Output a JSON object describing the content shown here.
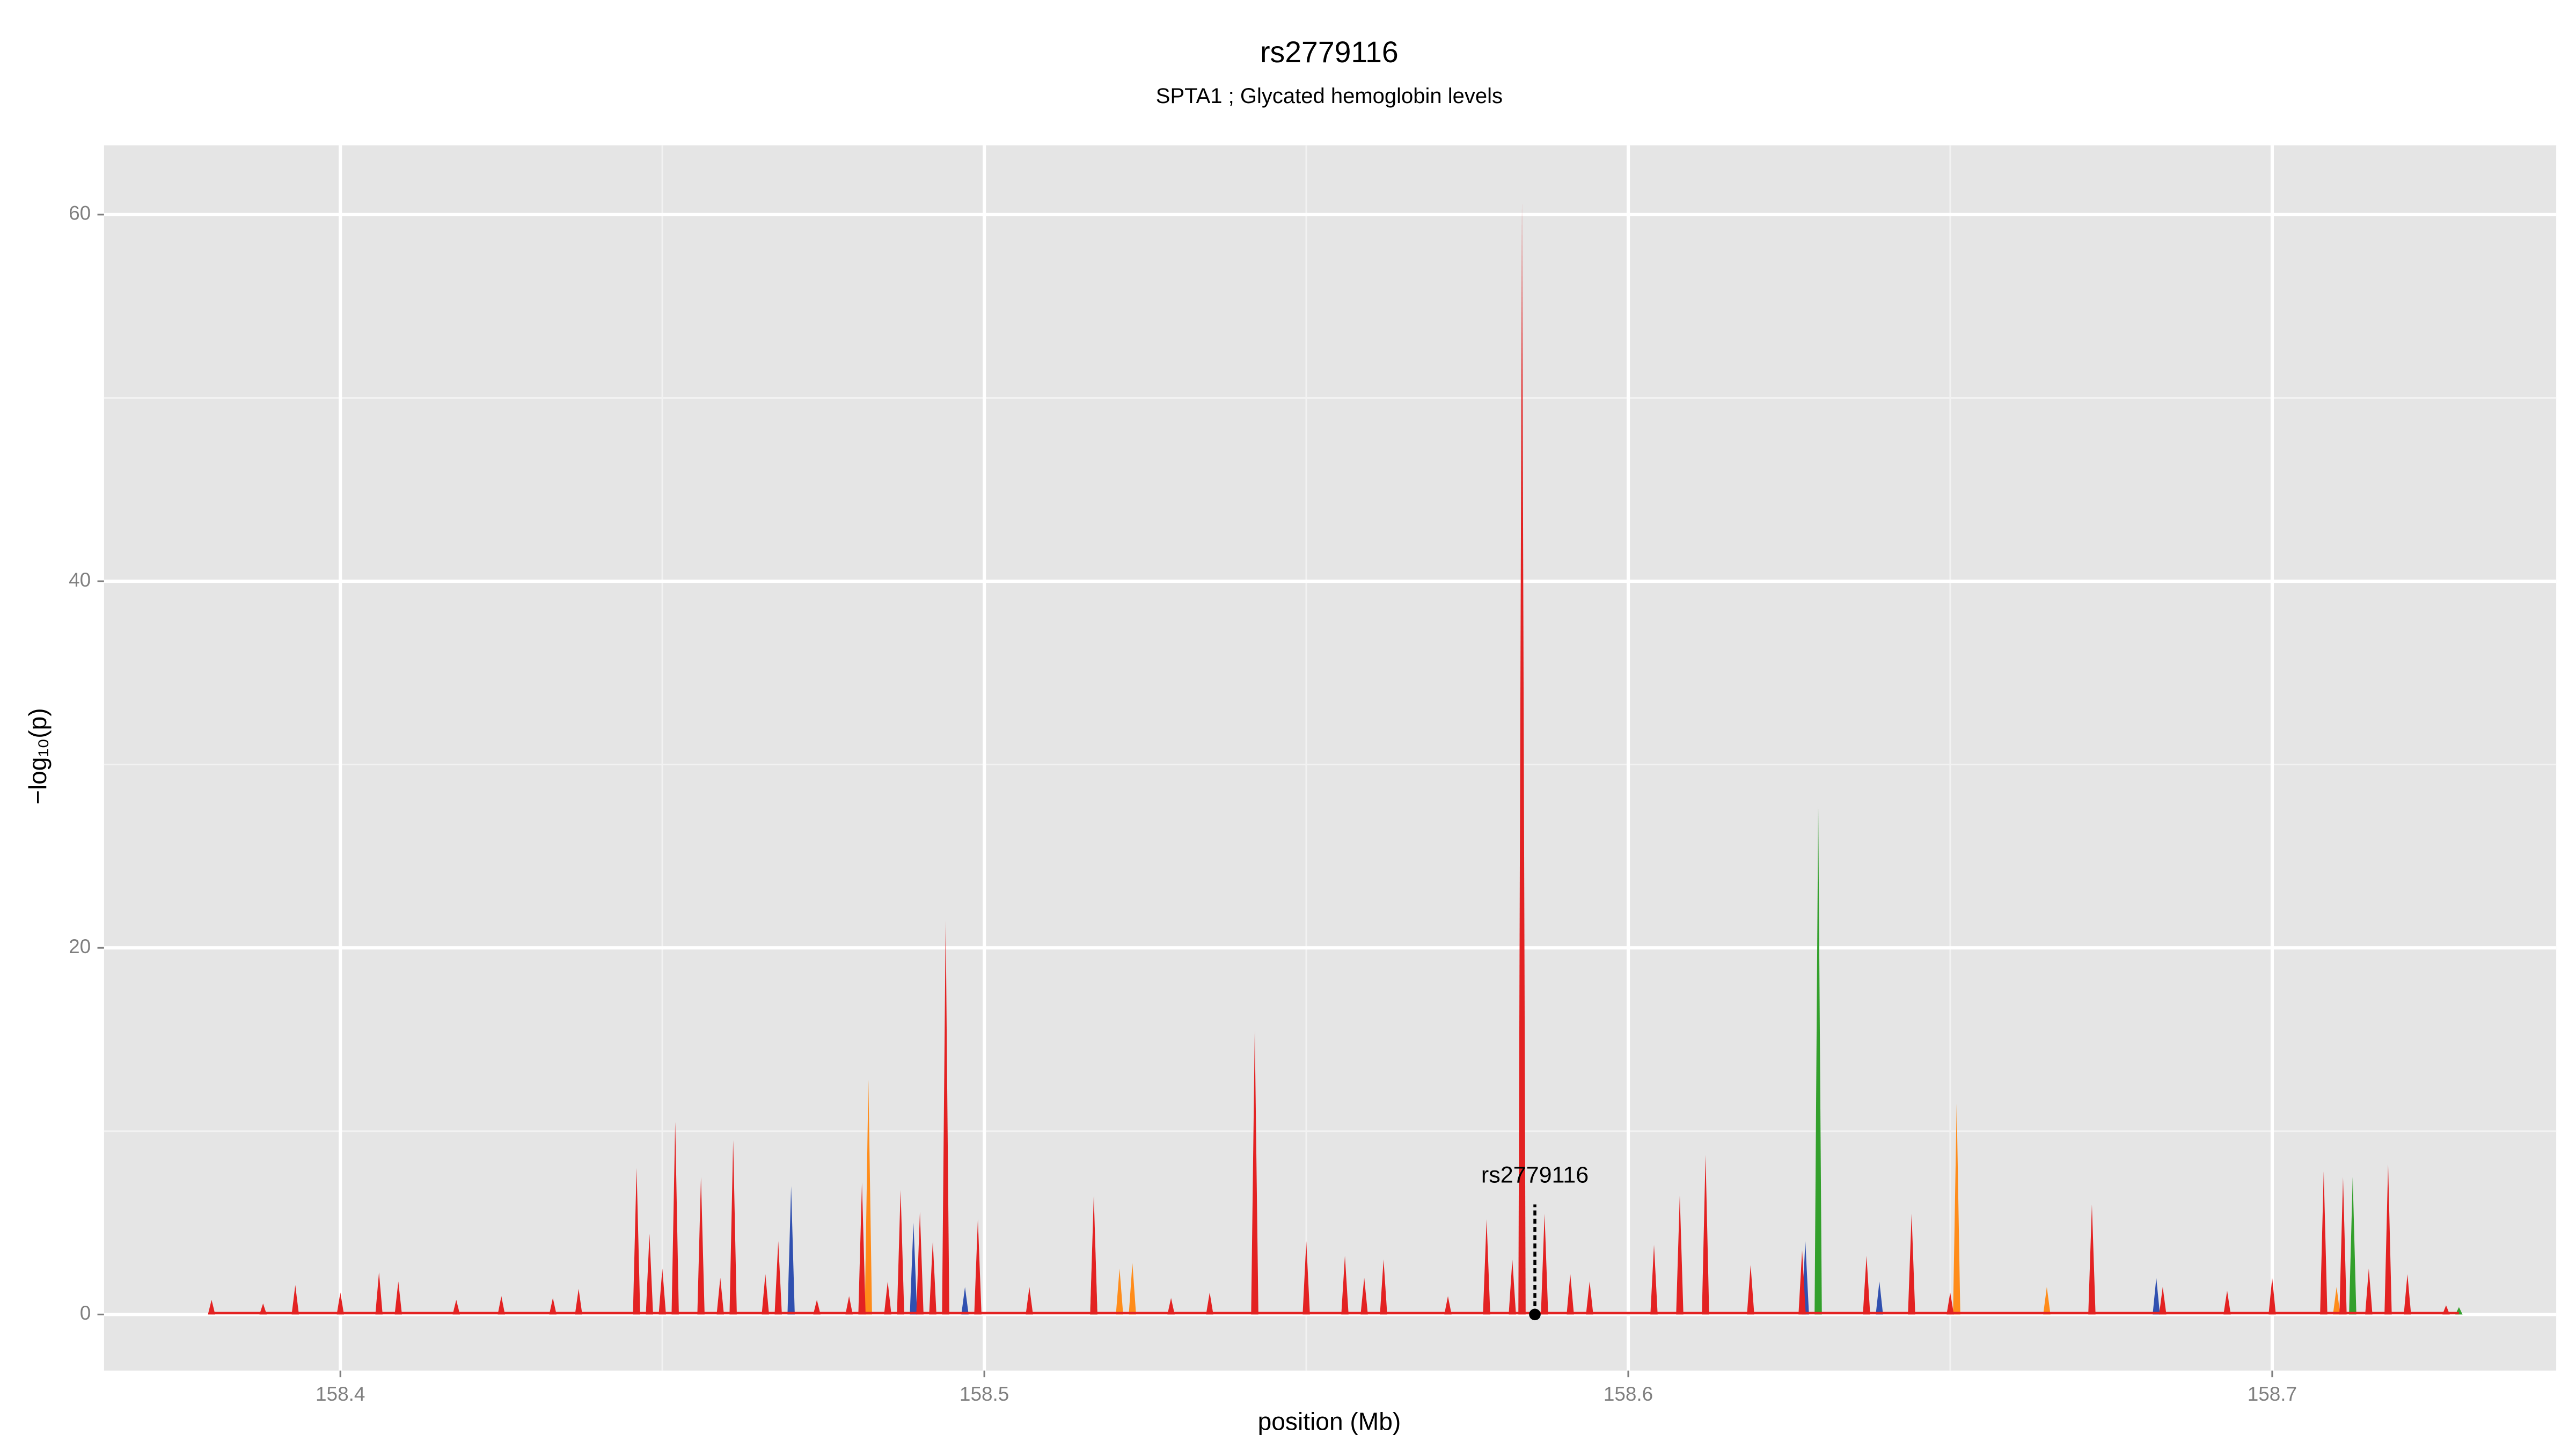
{
  "chart_data": {
    "type": "spike-area",
    "title": "rs2779116",
    "subtitle": "SPTA1 ; Glycated hemoglobin levels",
    "x_label": "position (Mb)",
    "y_label": "−log₁₀(p)",
    "xlim": [
      158.3633,
      158.7441
    ],
    "ylim": [
      -3.06,
      63.78
    ],
    "xticks": [
      158.4,
      158.5,
      158.6,
      158.7
    ],
    "yticks": [
      0,
      20,
      40,
      60
    ],
    "grid": true,
    "series": [
      {
        "color": "#3050b0",
        "x": [
          158.47,
          158.489,
          158.497,
          158.6275,
          158.639,
          158.682
        ],
        "values": [
          7.0,
          5.0,
          1.5,
          4.0,
          1.8,
          2.0
        ]
      },
      {
        "color": "#ff8c1a",
        "x": [
          158.482,
          158.521,
          158.523,
          158.651,
          158.665,
          158.71
        ],
        "values": [
          12.8,
          2.5,
          2.8,
          11.5,
          1.5,
          1.5
        ]
      },
      {
        "color": "#33a02c",
        "x": [
          158.517,
          158.6295,
          158.7125,
          158.729
        ],
        "values": [
          6.0,
          27.7,
          7.5,
          0.4
        ]
      },
      {
        "color": "#e32222",
        "x": [
          158.38,
          158.388,
          158.393,
          158.4,
          158.406,
          158.409,
          158.418,
          158.425,
          158.433,
          158.437,
          158.446,
          158.448,
          158.45,
          158.452,
          158.456,
          158.459,
          158.461,
          158.466,
          158.468,
          158.474,
          158.479,
          158.481,
          158.485,
          158.487,
          158.49,
          158.492,
          158.494,
          158.499,
          158.507,
          158.517,
          158.529,
          158.535,
          158.542,
          158.55,
          158.556,
          158.559,
          158.562,
          158.572,
          158.578,
          158.582,
          158.5835,
          158.587,
          158.591,
          158.594,
          158.604,
          158.608,
          158.612,
          158.619,
          158.627,
          158.637,
          158.644,
          158.65,
          158.672,
          158.683,
          158.693,
          158.7,
          158.708,
          158.711,
          158.715,
          158.718,
          158.721,
          158.727
        ],
        "values": [
          0.8,
          0.6,
          1.6,
          1.2,
          2.3,
          1.8,
          0.8,
          1.0,
          0.9,
          1.4,
          8.0,
          4.4,
          2.5,
          10.5,
          7.5,
          2.0,
          9.5,
          2.2,
          4.0,
          0.8,
          1.0,
          7.2,
          1.8,
          6.8,
          5.6,
          4.0,
          21.5,
          5.2,
          1.5,
          6.5,
          0.9,
          1.2,
          15.5,
          4.0,
          3.2,
          2.0,
          3.0,
          1.0,
          5.2,
          3.0,
          60.7,
          5.5,
          2.2,
          1.8,
          3.8,
          6.5,
          8.7,
          2.7,
          3.5,
          3.2,
          5.5,
          1.2,
          6.0,
          1.5,
          1.3,
          2.0,
          7.8,
          7.5,
          2.5,
          8.2,
          2.2,
          0.5
        ]
      }
    ],
    "annotation": {
      "label": "rs2779116",
      "x": 158.5855,
      "y": 6
    }
  }
}
